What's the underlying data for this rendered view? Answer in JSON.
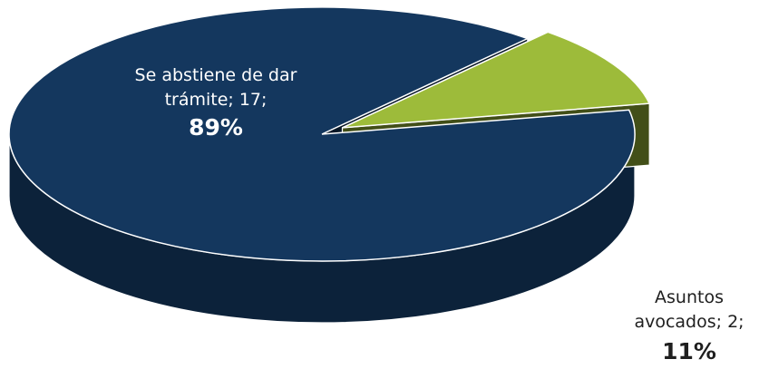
{
  "chart_data": {
    "type": "pie",
    "style": "3d-exploded",
    "slices": [
      {
        "label": "Se abstiene de dar trámite",
        "value": 17,
        "percent": "89%",
        "color": "#14375e"
      },
      {
        "label": "Asuntos avocados",
        "value": 2,
        "percent": "11%",
        "color": "#9dbb3a"
      }
    ],
    "data_labels": [
      {
        "line1": "Se abstiene de dar",
        "line2": "trámite; 17;",
        "pct": "89%"
      },
      {
        "line1": "Asuntos",
        "line2": "avocados; 2;",
        "pct": "11%"
      }
    ]
  }
}
